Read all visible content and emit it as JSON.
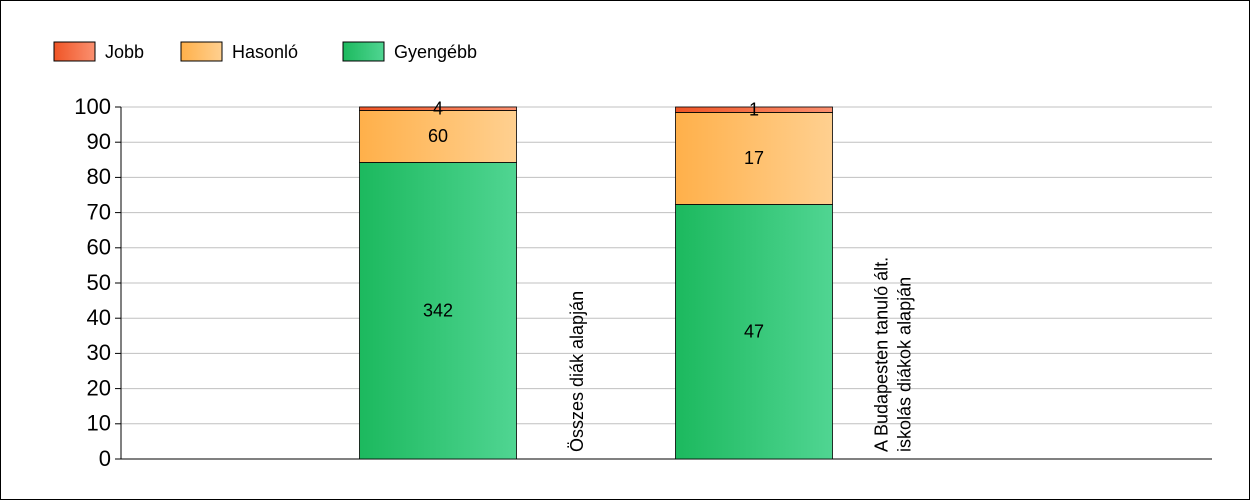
{
  "chart_data": {
    "type": "stacked_bar_percent",
    "categories": [
      [
        "Összes diák alapján"
      ],
      [
        "A Budapesten tanuló ált.",
        "iskolás diákok alapján"
      ]
    ],
    "series": [
      {
        "name": "Jobb",
        "color": [
          "#ef5526",
          "#fb9070"
        ],
        "values": [
          0.99,
          1.54
        ],
        "counts": [
          4,
          1
        ]
      },
      {
        "name": "Hasonló",
        "color": [
          "#ffb04a",
          "#ffd090"
        ],
        "values": [
          14.78,
          26.15
        ],
        "counts": [
          60,
          17
        ]
      },
      {
        "name": "Gyengébb",
        "color": [
          "#1cb95e",
          "#50d592"
        ],
        "values": [
          84.24,
          72.31
        ],
        "counts": [
          342,
          47
        ]
      }
    ],
    "ylim": [
      0,
      100
    ],
    "yticks": [
      0,
      10,
      20,
      30,
      40,
      50,
      60,
      70,
      80,
      90,
      100
    ],
    "grid": true
  }
}
